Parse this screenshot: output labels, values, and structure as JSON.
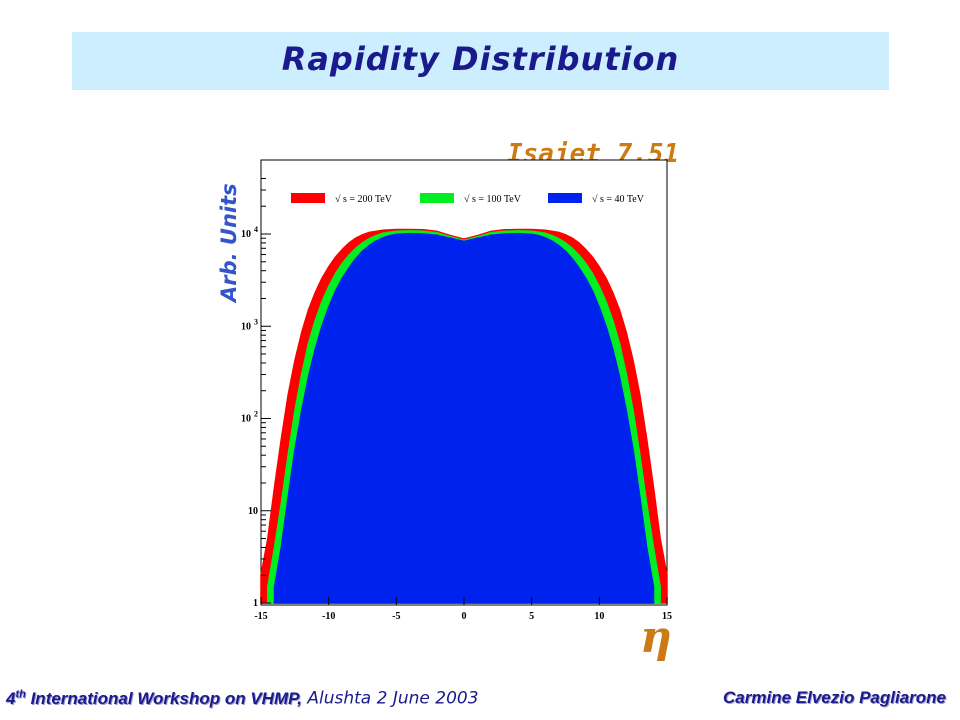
{
  "slide": {
    "title": "Rapidity Distribution",
    "generator": "Isajet 7.51",
    "footer": {
      "ordinal": "4",
      "ordinal_suffix": "th",
      "workshop": " International Workshop on VHMP,",
      "place_date": " Alushta 2 June 2003",
      "author": "Carmine Elvezio Pagliarone"
    }
  },
  "colors": {
    "title_band": "#cceeff",
    "title_text": "#1a1a8c",
    "generator_text": "#cc7a14",
    "ylabel_text": "#3355cc",
    "xlabel_text": "#cc7a14"
  },
  "chart_data": {
    "type": "area",
    "xlabel": "η",
    "ylabel": "Arb. Units",
    "xlim": [
      -15,
      15
    ],
    "ylim": [
      1,
      40000
    ],
    "yscale": "log",
    "xticks": [
      -15,
      -10,
      -5,
      0,
      5,
      10,
      15
    ],
    "xtick_labels": [
      "-15",
      "-10",
      "-5",
      "0",
      "5",
      "10",
      "15"
    ],
    "yticks": [
      1,
      10,
      100,
      1000,
      10000
    ],
    "ytick_labels": [
      "1",
      "10",
      "10 2",
      "10 3",
      "10 4"
    ],
    "legend_position": "top",
    "series": [
      {
        "name": "√ s = 200 TeV",
        "color": "#ff0000",
        "x": [
          -15,
          -14.5,
          -14,
          -13.5,
          -13,
          -12.5,
          -12,
          -11.5,
          -11,
          -10.5,
          -10,
          -9.5,
          -9,
          -8.5,
          -8,
          -7.5,
          -7,
          -6,
          -5,
          -4,
          -3,
          -2,
          -1,
          0,
          1,
          2,
          3,
          4,
          5,
          6,
          7,
          7.5,
          8,
          8.5,
          9,
          9.5,
          10,
          10.5,
          11,
          11.5,
          12,
          12.5,
          13,
          13.5,
          14,
          14.5,
          15
        ],
        "y": [
          2,
          5,
          18,
          60,
          180,
          420,
          850,
          1500,
          2300,
          3300,
          4400,
          5600,
          6800,
          8000,
          9000,
          9800,
          10400,
          11000,
          11200,
          11200,
          11100,
          10700,
          9600,
          8800,
          9600,
          10700,
          11100,
          11200,
          11200,
          11000,
          10400,
          9800,
          9000,
          8000,
          6800,
          5600,
          4400,
          3300,
          2300,
          1500,
          850,
          420,
          180,
          60,
          18,
          5,
          2
        ]
      },
      {
        "name": "√ s = 100 TeV",
        "color": "#00ee22",
        "x": [
          -14.5,
          -14,
          -13.5,
          -13,
          -12.5,
          -12,
          -11.5,
          -11,
          -10.5,
          -10,
          -9.5,
          -9,
          -8.5,
          -8,
          -7.5,
          -7,
          -6.5,
          -6,
          -5,
          -4,
          -3,
          -2,
          -1,
          0,
          1,
          2,
          3,
          4,
          5,
          6,
          6.5,
          7,
          7.5,
          8,
          8.5,
          9,
          9.5,
          10,
          10.5,
          11,
          11.5,
          12,
          12.5,
          13,
          13.5,
          14,
          14.5
        ],
        "y": [
          1.5,
          4,
          12,
          40,
          120,
          300,
          650,
          1150,
          1850,
          2700,
          3700,
          4800,
          5900,
          7000,
          8000,
          8900,
          9600,
          10200,
          10700,
          10800,
          10700,
          10300,
          9300,
          8500,
          9300,
          10300,
          10700,
          10800,
          10700,
          10200,
          9600,
          8900,
          8000,
          7000,
          5900,
          4800,
          3700,
          2700,
          1850,
          1150,
          650,
          300,
          120,
          40,
          12,
          4,
          1.5
        ]
      },
      {
        "name": "√ s = 40 TeV",
        "color": "#0022ee",
        "x": [
          -14,
          -13.5,
          -13,
          -12.5,
          -12,
          -11.5,
          -11,
          -10.5,
          -10,
          -9.5,
          -9,
          -8.5,
          -8,
          -7.5,
          -7,
          -6.5,
          -6,
          -5.5,
          -5,
          -4,
          -3,
          -2,
          -1,
          0,
          1,
          2,
          3,
          4,
          5,
          5.5,
          6,
          6.5,
          7,
          7.5,
          8,
          8.5,
          9,
          9.5,
          10,
          10.5,
          11,
          11.5,
          12,
          12.5,
          13,
          13.5,
          14
        ],
        "y": [
          1.5,
          4,
          14,
          45,
          120,
          280,
          560,
          1000,
          1600,
          2400,
          3300,
          4300,
          5400,
          6500,
          7500,
          8400,
          9100,
          9600,
          9900,
          10100,
          10000,
          9700,
          9000,
          8300,
          9000,
          9700,
          10000,
          10100,
          9900,
          9600,
          9100,
          8400,
          7500,
          6500,
          5400,
          4300,
          3300,
          2400,
          1600,
          1000,
          560,
          280,
          120,
          45,
          14,
          4,
          1.5
        ]
      }
    ]
  }
}
